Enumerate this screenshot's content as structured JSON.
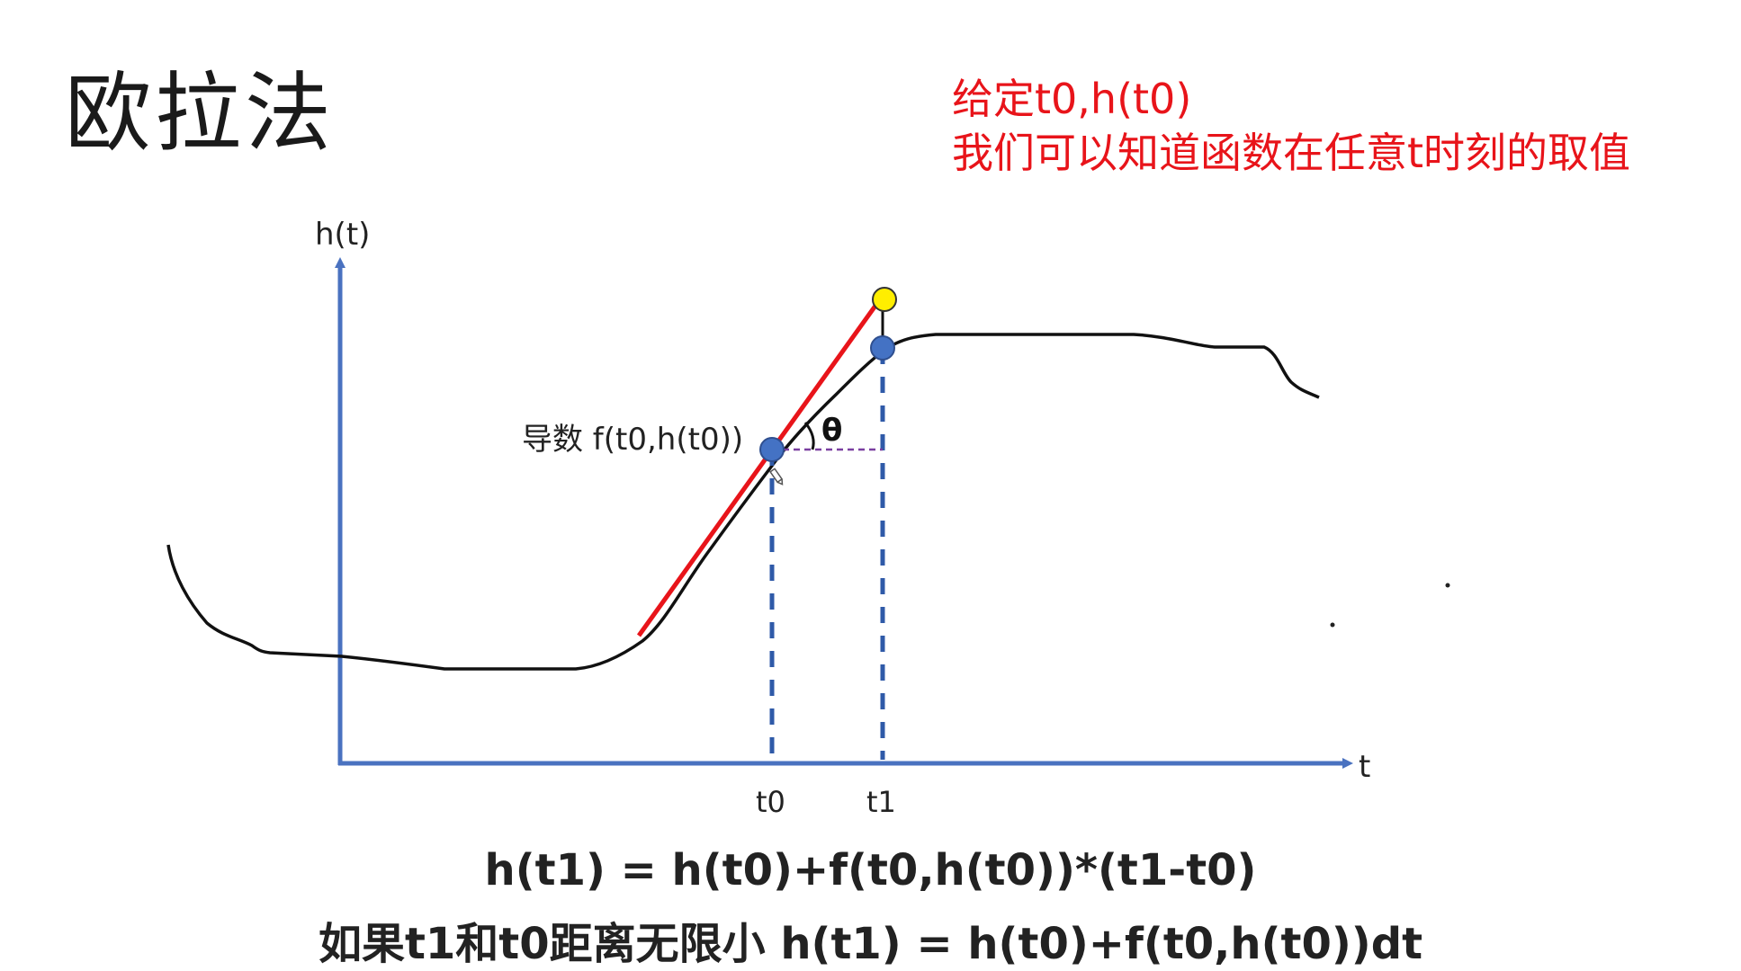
{
  "title": "欧拉法",
  "note": {
    "line1": "给定t0,h(t0)",
    "line2": "我们可以知道函数在任意t时刻的取值"
  },
  "diagram": {
    "y_axis_label": "h(t)",
    "x_axis_label": "t",
    "tick_t0": "t0",
    "tick_t1": "t1",
    "derivative_label": "导数 f(t0,h(t0))",
    "angle_label": "θ",
    "colors": {
      "axis": "#4a72c0",
      "tangent": "#e8141a",
      "point": "#4472c4",
      "estimate_point": "#ffee00",
      "horizontal_dash": "#7a3fa0",
      "curve": "#111111"
    }
  },
  "formulas": {
    "line1": "h(t1) = h(t0)+f(t0,h(t0))*(t1-t0)",
    "line2": "如果t1和t0距离无限小 h(t1) = h(t0)+f(t0,h(t0))dt"
  }
}
